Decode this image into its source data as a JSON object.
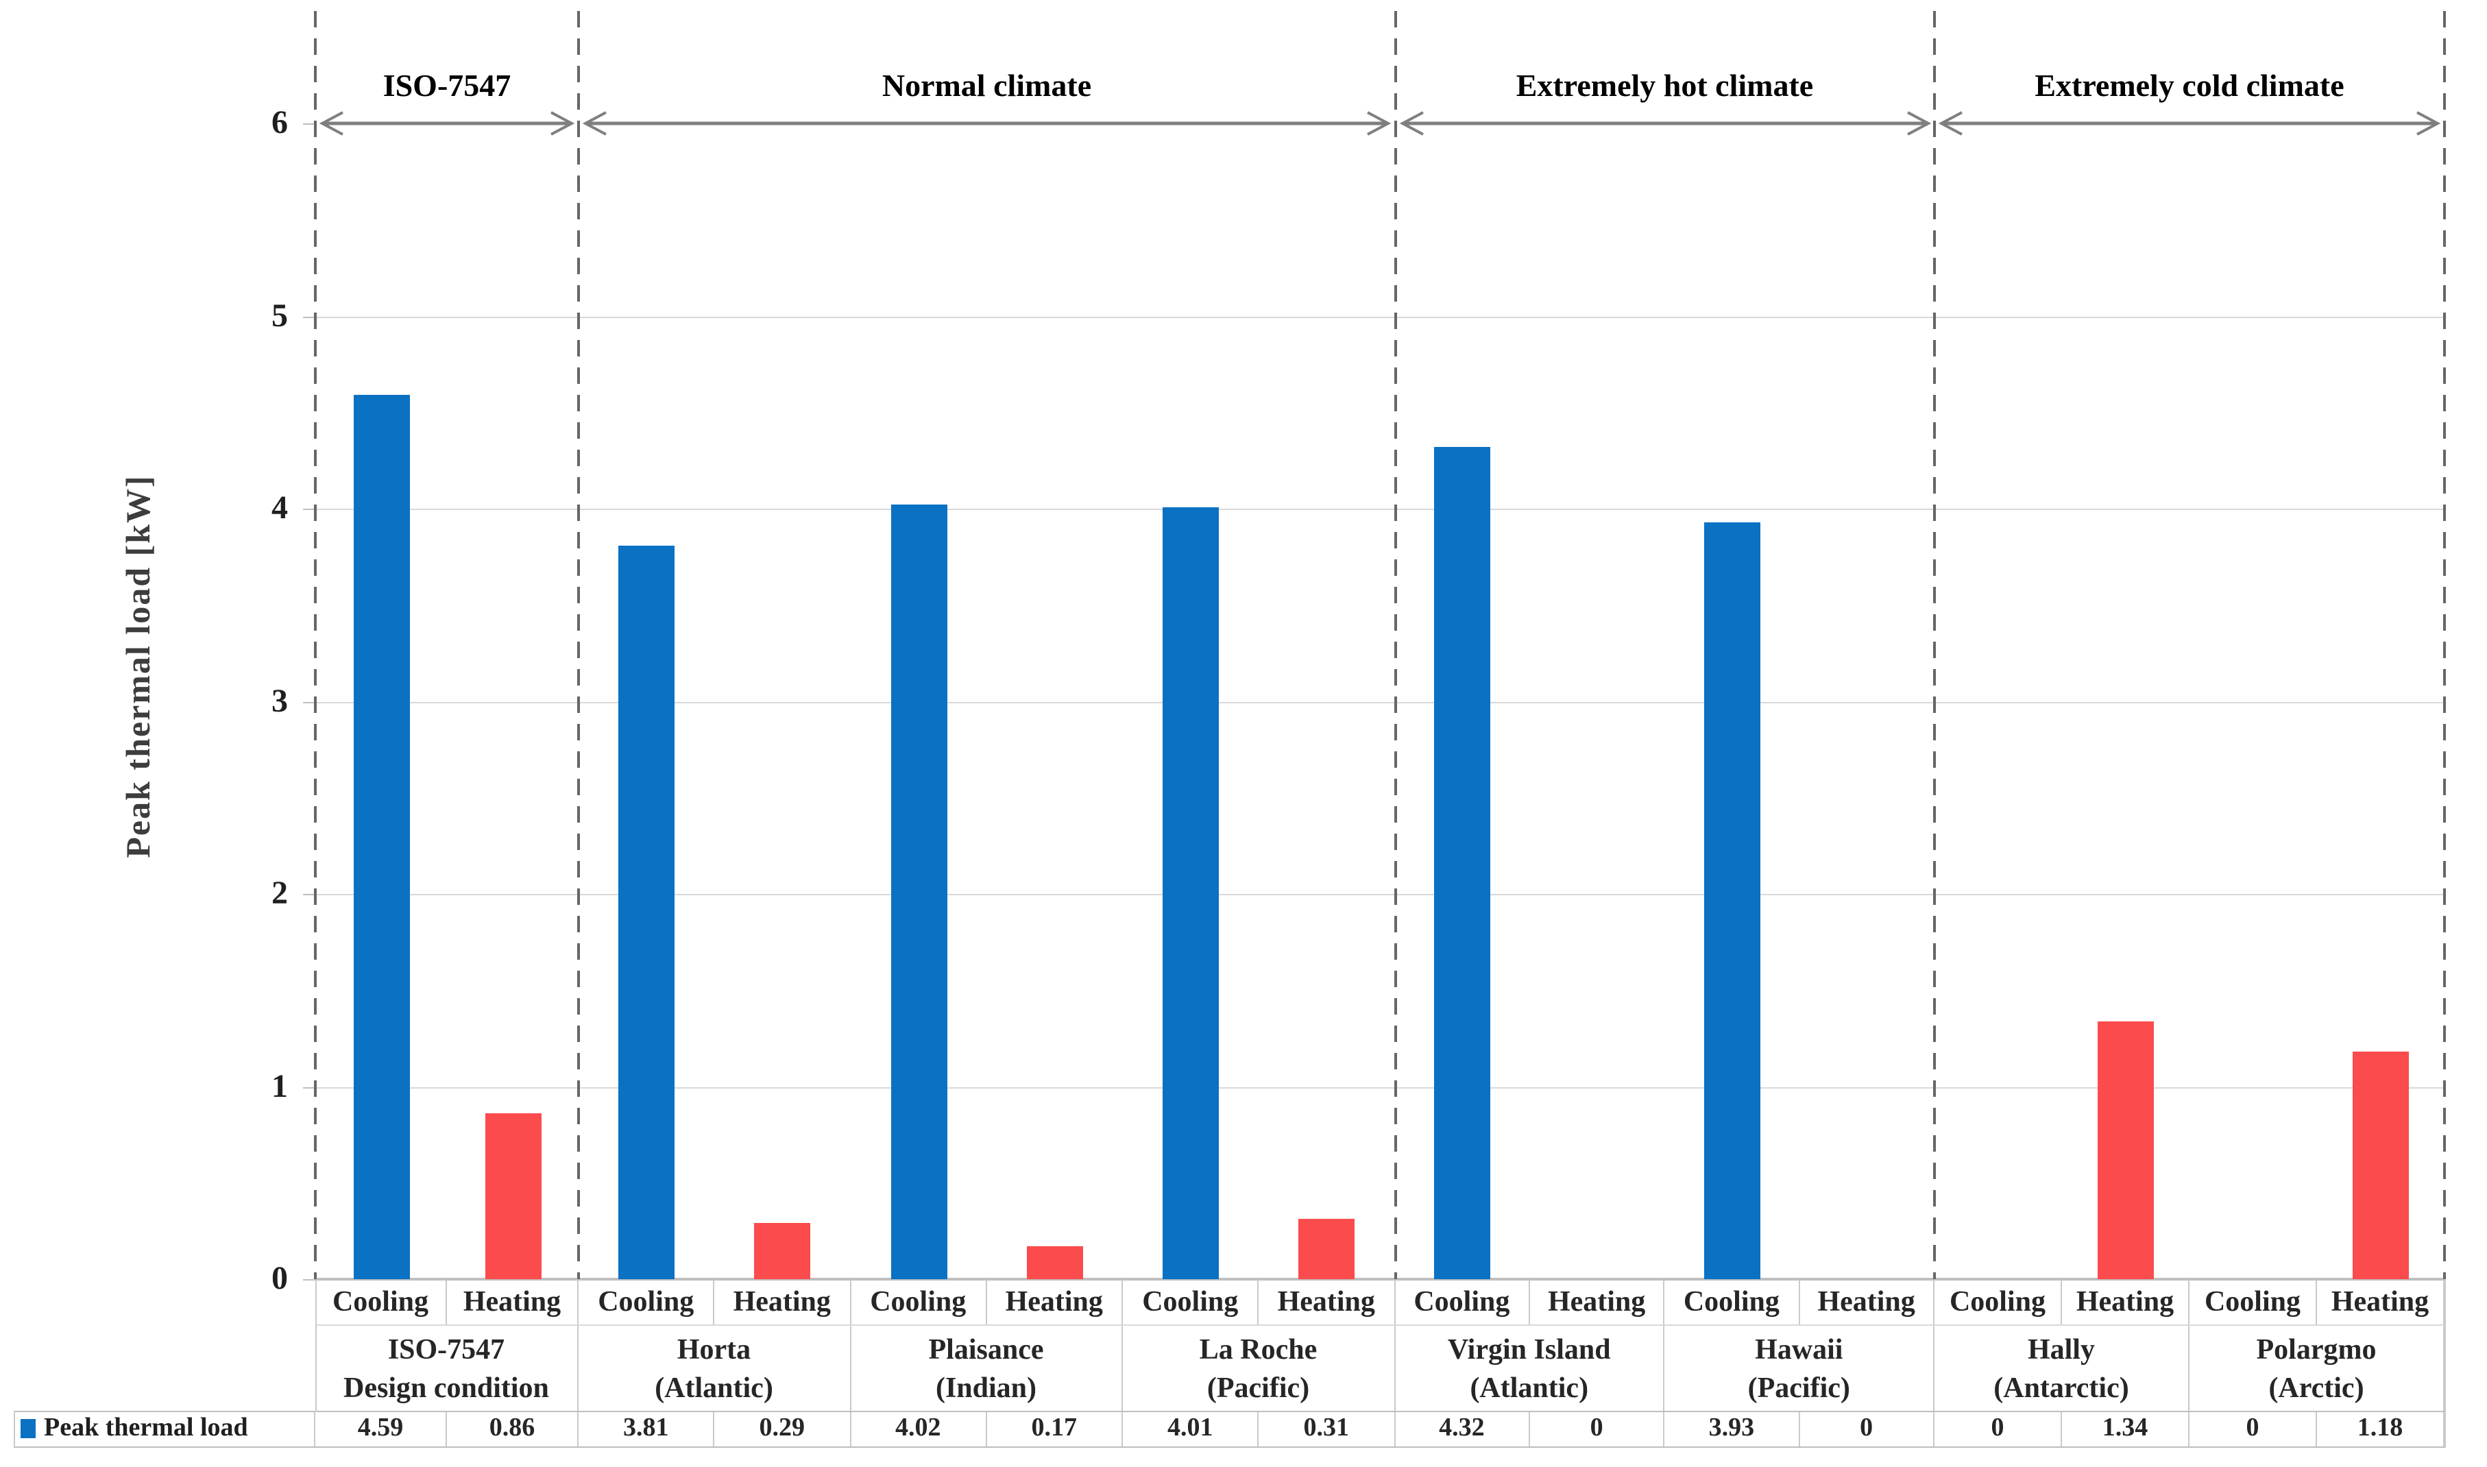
{
  "chart_data": {
    "type": "bar",
    "ylabel": "Peak thermal load [kW]",
    "ylim": [
      0,
      6
    ],
    "yticks": [
      0,
      1,
      2,
      3,
      4,
      5,
      6
    ],
    "grid": true,
    "legend": {
      "label": "Peak thermal load",
      "position": "bottom-table-left"
    },
    "bar_sublabels": [
      "Cooling",
      "Heating"
    ],
    "sections": [
      {
        "label": "ISO-7547",
        "groups": [
          {
            "name_lines": [
              "ISO-7547",
              "Design condition"
            ],
            "cooling": 4.59,
            "heating": 0.86
          }
        ]
      },
      {
        "label": "Normal climate",
        "groups": [
          {
            "name_lines": [
              "Horta",
              "(Atlantic)"
            ],
            "cooling": 3.81,
            "heating": 0.29
          },
          {
            "name_lines": [
              "Plaisance",
              "(Indian)"
            ],
            "cooling": 4.02,
            "heating": 0.17
          },
          {
            "name_lines": [
              "La Roche",
              "(Pacific)"
            ],
            "cooling": 4.01,
            "heating": 0.31
          }
        ]
      },
      {
        "label": "Extremely hot climate",
        "groups": [
          {
            "name_lines": [
              "Virgin Island",
              "(Atlantic)"
            ],
            "cooling": 4.32,
            "heating": 0
          },
          {
            "name_lines": [
              "Hawaii",
              "(Pacific)"
            ],
            "cooling": 3.93,
            "heating": 0
          }
        ]
      },
      {
        "label": "Extremely cold climate",
        "groups": [
          {
            "name_lines": [
              "Hally",
              "(Antarctic)"
            ],
            "cooling": 0,
            "heating": 1.34
          },
          {
            "name_lines": [
              "Polargmo",
              "(Arctic)"
            ],
            "cooling": 0,
            "heating": 1.18
          }
        ]
      }
    ],
    "colors": {
      "cooling": "#0b71c3",
      "heating": "#fb4b4d",
      "gridline": "#d9d9d9",
      "axis": "#bfbfbf",
      "divider": "#666666",
      "arrow": "#7f7f7f",
      "table_border": "#cacaca",
      "text": "#262626"
    }
  }
}
